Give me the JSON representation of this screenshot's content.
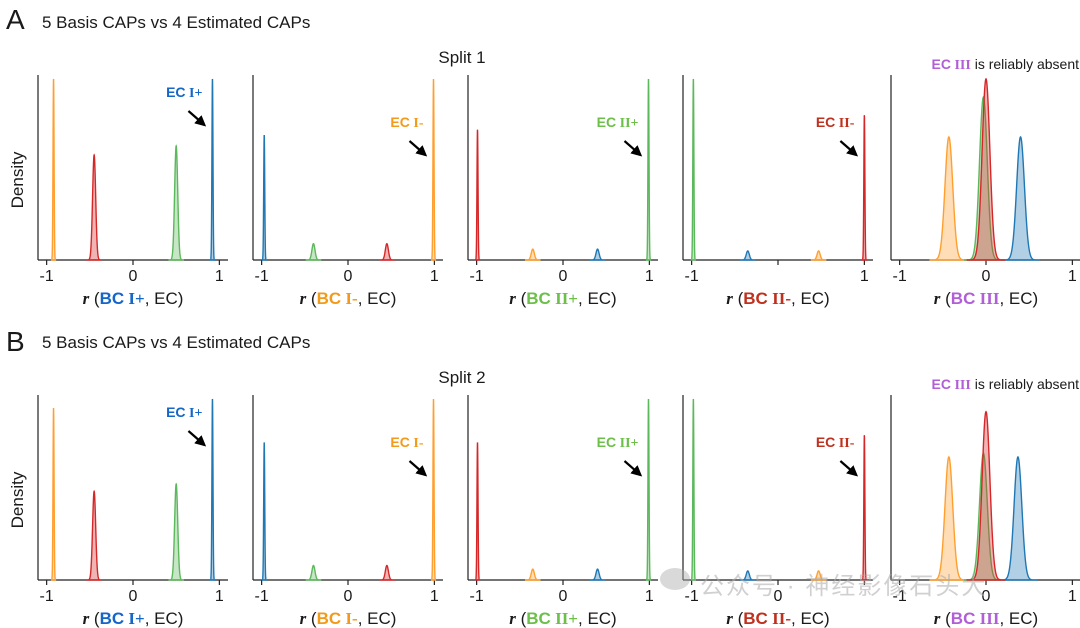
{
  "figure": {
    "rows": [
      {
        "letter": "A",
        "subtitle": "5 Basis CAPs vs 4 Estimated CAPs",
        "split_title": "Split 1"
      },
      {
        "letter": "B",
        "subtitle": "5 Basis CAPs vs 4 Estimated CAPs",
        "split_title": "Split 2"
      }
    ],
    "ylabel": "Density",
    "absent_note": {
      "ec": "EC",
      "roman": "III",
      "rest": "is reliably absent"
    },
    "watermark": "公众号 · 神经影像石头大"
  },
  "colors": {
    "blue": "#1f77b4",
    "orange": "#ff9f2f",
    "green": "#5cb85c",
    "red": "#d62728",
    "purple": "#b05fd6",
    "ann_blue": "#1466c8",
    "ann_orange": "#f39a1b",
    "ann_green": "#6cc04a",
    "ann_red": "#c0301e"
  },
  "chart_data": [
    {
      "type": "area",
      "row": 0,
      "xlim": [
        -1.1,
        1.1
      ],
      "xticks": [
        "-1",
        "0",
        "1"
      ],
      "xlabel": {
        "r": "r",
        "open": " (",
        "bc": "BC",
        "roman": "I+",
        "close": ", EC)",
        "color": "blue"
      },
      "annotation": {
        "text": "EC",
        "roman": "I+",
        "color": "blue"
      },
      "series": [
        {
          "color": "orange",
          "center": -0.92,
          "height": 1.0
        },
        {
          "color": "red",
          "center": -0.45,
          "height": 0.58
        },
        {
          "color": "green",
          "center": 0.5,
          "height": 0.63
        },
        {
          "color": "blue",
          "center": 0.92,
          "height": 1.0
        }
      ]
    },
    {
      "type": "area",
      "row": 0,
      "xlim": [
        -1.1,
        1.1
      ],
      "xticks": [
        "-1",
        "0",
        "1"
      ],
      "xlabel": {
        "r": "r",
        "open": " (",
        "bc": "BC",
        "roman": "I-",
        "close": ", EC)",
        "color": "orange"
      },
      "annotation": {
        "text": "EC",
        "roman": "I-",
        "color": "orange"
      },
      "series": [
        {
          "color": "blue",
          "center": -0.97,
          "height": 0.69
        },
        {
          "color": "green",
          "center": -0.4,
          "height": 0.09
        },
        {
          "color": "red",
          "center": 0.45,
          "height": 0.09
        },
        {
          "color": "orange",
          "center": 0.99,
          "height": 1.0
        }
      ]
    },
    {
      "type": "area",
      "row": 0,
      "xlim": [
        -1.1,
        1.1
      ],
      "xticks": [
        "-1",
        "0",
        "1"
      ],
      "xlabel": {
        "r": "r",
        "open": " (",
        "bc": "BC",
        "roman": "II+",
        "close": ", EC)",
        "color": "green"
      },
      "annotation": {
        "text": "EC",
        "roman": "II+",
        "color": "green"
      },
      "series": [
        {
          "color": "red",
          "center": -0.99,
          "height": 0.72
        },
        {
          "color": "orange",
          "center": -0.35,
          "height": 0.06
        },
        {
          "color": "blue",
          "center": 0.4,
          "height": 0.06
        },
        {
          "color": "green",
          "center": 0.99,
          "height": 1.0
        }
      ]
    },
    {
      "type": "area",
      "row": 0,
      "xlim": [
        -1.1,
        1.1
      ],
      "xticks": [
        "-1",
        "",
        "1"
      ],
      "xlabel": {
        "r": "r",
        "open": " (",
        "bc": "BC",
        "roman": "II-",
        "close": ", EC)",
        "color": "red"
      },
      "annotation": {
        "text": "EC",
        "roman": "II-",
        "color": "red"
      },
      "series": [
        {
          "color": "green",
          "center": -0.98,
          "height": 1.0
        },
        {
          "color": "blue",
          "center": -0.35,
          "height": 0.05
        },
        {
          "color": "orange",
          "center": 0.47,
          "height": 0.05
        },
        {
          "color": "red",
          "center": 1.0,
          "height": 0.8
        }
      ]
    },
    {
      "type": "area",
      "row": 0,
      "xlim": [
        -1.1,
        1.1
      ],
      "xticks": [
        "-1",
        "0",
        "1"
      ],
      "xlabel": {
        "r": "r",
        "open": " (",
        "bc": "BC",
        "roman": "III",
        "close": ", EC)",
        "color": "purple"
      },
      "annotation": null,
      "series": [
        {
          "color": "orange",
          "center": -0.43,
          "height": 0.68
        },
        {
          "color": "blue",
          "center": 0.4,
          "height": 0.68
        },
        {
          "color": "green",
          "center": -0.03,
          "height": 0.9
        },
        {
          "color": "red",
          "center": 0.0,
          "height": 1.0
        }
      ]
    },
    {
      "type": "area",
      "row": 1,
      "xlim": [
        -1.1,
        1.1
      ],
      "xticks": [
        "-1",
        "0",
        "1"
      ],
      "xlabel": {
        "r": "r",
        "open": " (",
        "bc": "BC",
        "roman": "I+",
        "close": ", EC)",
        "color": "blue"
      },
      "annotation": {
        "text": "EC",
        "roman": "I+",
        "color": "blue"
      },
      "series": [
        {
          "color": "orange",
          "center": -0.92,
          "height": 0.95
        },
        {
          "color": "red",
          "center": -0.45,
          "height": 0.49
        },
        {
          "color": "green",
          "center": 0.5,
          "height": 0.53
        },
        {
          "color": "blue",
          "center": 0.92,
          "height": 1.0
        }
      ]
    },
    {
      "type": "area",
      "row": 1,
      "xlim": [
        -1.1,
        1.1
      ],
      "xticks": [
        "-1",
        "0",
        "1"
      ],
      "xlabel": {
        "r": "r",
        "open": " (",
        "bc": "BC",
        "roman": "I-",
        "close": ", EC)",
        "color": "orange"
      },
      "annotation": {
        "text": "EC",
        "roman": "I-",
        "color": "orange"
      },
      "series": [
        {
          "color": "blue",
          "center": -0.97,
          "height": 0.76
        },
        {
          "color": "green",
          "center": -0.4,
          "height": 0.08
        },
        {
          "color": "red",
          "center": 0.45,
          "height": 0.08
        },
        {
          "color": "orange",
          "center": 0.99,
          "height": 1.0
        }
      ]
    },
    {
      "type": "area",
      "row": 1,
      "xlim": [
        -1.1,
        1.1
      ],
      "xticks": [
        "-1",
        "0",
        "1"
      ],
      "xlabel": {
        "r": "r",
        "open": " (",
        "bc": "BC",
        "roman": "II+",
        "close": ", EC)",
        "color": "green"
      },
      "annotation": {
        "text": "EC",
        "roman": "II+",
        "color": "green"
      },
      "series": [
        {
          "color": "red",
          "center": -0.99,
          "height": 0.76
        },
        {
          "color": "orange",
          "center": -0.35,
          "height": 0.06
        },
        {
          "color": "blue",
          "center": 0.4,
          "height": 0.06
        },
        {
          "color": "green",
          "center": 0.99,
          "height": 1.0
        }
      ]
    },
    {
      "type": "area",
      "row": 1,
      "xlim": [
        -1.1,
        1.1
      ],
      "xticks": [
        "-1",
        "0",
        ""
      ],
      "xlabel": {
        "r": "r",
        "open": " (",
        "bc": "BC",
        "roman": "II-",
        "close": ", EC)",
        "color": "red"
      },
      "annotation": {
        "text": "EC",
        "roman": "II-",
        "color": "red"
      },
      "series": [
        {
          "color": "green",
          "center": -0.98,
          "height": 1.0
        },
        {
          "color": "blue",
          "center": -0.35,
          "height": 0.05
        },
        {
          "color": "orange",
          "center": 0.47,
          "height": 0.05
        },
        {
          "color": "red",
          "center": 1.0,
          "height": 0.8
        }
      ]
    },
    {
      "type": "area",
      "row": 1,
      "xlim": [
        -1.1,
        1.1
      ],
      "xticks": [
        "-1",
        "0",
        "1"
      ],
      "xlabel": {
        "r": "r",
        "open": " (",
        "bc": "BC",
        "roman": "III",
        "close": ", EC)",
        "color": "purple"
      },
      "annotation": null,
      "series": [
        {
          "color": "orange",
          "center": -0.43,
          "height": 0.68
        },
        {
          "color": "blue",
          "center": 0.37,
          "height": 0.68
        },
        {
          "color": "green",
          "center": -0.03,
          "height": 0.7
        },
        {
          "color": "red",
          "center": 0.0,
          "height": 0.93
        }
      ]
    }
  ]
}
